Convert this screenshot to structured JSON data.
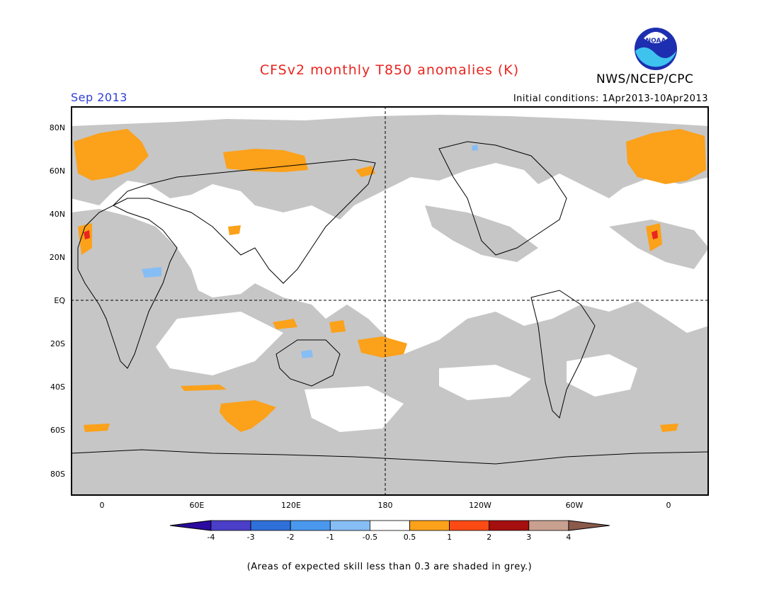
{
  "title": "CFSv2 monthly T850 anomalies (K)",
  "period": "Sep 2013",
  "initial_conditions": "Initial conditions: 1Apr2013-10Apr2013",
  "agency": "NWS/NCEP/CPC",
  "logo_text": "NOAA",
  "lat_labels": [
    "80N",
    "60N",
    "40N",
    "20N",
    "EQ",
    "20S",
    "40S",
    "60S",
    "80S"
  ],
  "lon_labels": [
    "0",
    "60E",
    "120E",
    "180",
    "120W",
    "60W",
    "0"
  ],
  "colorbar": {
    "labels": [
      "-4",
      "-3",
      "-2",
      "-1",
      "-0.5",
      "0.5",
      "1",
      "2",
      "3",
      "4"
    ],
    "colors": [
      "#2a0aa0",
      "#4b3ec8",
      "#2f6fd8",
      "#4a98ee",
      "#86bdf5",
      "#ffffff",
      "#fba11a",
      "#fb4a14",
      "#a50f0f",
      "#c8a090",
      "#8a5a4a"
    ]
  },
  "legend_colors": {
    "grey_low_skill": "#c6c6c6",
    "positive_anomaly": "#fba11a",
    "strong_positive": "#e8251f",
    "negative_anomaly": "#86bdf5"
  },
  "footnote": "(Areas of expected skill less than 0.3 are shaded in grey.)"
}
